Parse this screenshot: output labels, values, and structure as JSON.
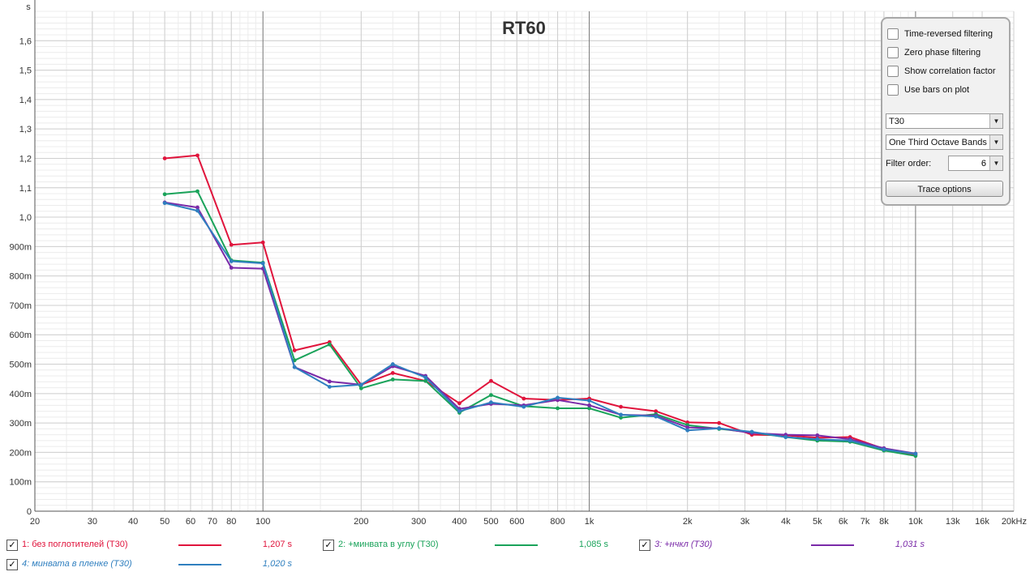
{
  "chart_data": {
    "type": "line",
    "title": "RT60",
    "ylabel": "s",
    "xlabel": "",
    "x_scale": "log",
    "xlim": [
      20,
      20000
    ],
    "ylim": [
      0,
      1.7
    ],
    "x_ticks": [
      {
        "v": 20,
        "label": "20"
      },
      {
        "v": 30,
        "label": "30"
      },
      {
        "v": 40,
        "label": "40"
      },
      {
        "v": 50,
        "label": "50"
      },
      {
        "v": 60,
        "label": "60"
      },
      {
        "v": 70,
        "label": "70"
      },
      {
        "v": 80,
        "label": "80"
      },
      {
        "v": 100,
        "label": "100"
      },
      {
        "v": 200,
        "label": "200"
      },
      {
        "v": 300,
        "label": "300"
      },
      {
        "v": 400,
        "label": "400"
      },
      {
        "v": 500,
        "label": "500"
      },
      {
        "v": 600,
        "label": "600"
      },
      {
        "v": 800,
        "label": "800"
      },
      {
        "v": 1000,
        "label": "1k"
      },
      {
        "v": 2000,
        "label": "2k"
      },
      {
        "v": 3000,
        "label": "3k"
      },
      {
        "v": 4000,
        "label": "4k"
      },
      {
        "v": 5000,
        "label": "5k"
      },
      {
        "v": 6000,
        "label": "6k"
      },
      {
        "v": 7000,
        "label": "7k"
      },
      {
        "v": 8000,
        "label": "8k"
      },
      {
        "v": 10000,
        "label": "10k"
      },
      {
        "v": 13000,
        "label": "13k"
      },
      {
        "v": 16000,
        "label": "16k"
      },
      {
        "v": 20000,
        "label": "20kHz"
      }
    ],
    "y_ticks": [
      {
        "v": 0,
        "label": "0"
      },
      {
        "v": 0.1,
        "label": "100m"
      },
      {
        "v": 0.2,
        "label": "200m"
      },
      {
        "v": 0.3,
        "label": "300m"
      },
      {
        "v": 0.4,
        "label": "400m"
      },
      {
        "v": 0.5,
        "label": "500m"
      },
      {
        "v": 0.6,
        "label": "600m"
      },
      {
        "v": 0.7,
        "label": "700m"
      },
      {
        "v": 0.8,
        "label": "800m"
      },
      {
        "v": 0.9,
        "label": "900m"
      },
      {
        "v": 1.0,
        "label": "1,0"
      },
      {
        "v": 1.1,
        "label": "1,1"
      },
      {
        "v": 1.2,
        "label": "1,2"
      },
      {
        "v": 1.3,
        "label": "1,3"
      },
      {
        "v": 1.4,
        "label": "1,4"
      },
      {
        "v": 1.5,
        "label": "1,5"
      },
      {
        "v": 1.6,
        "label": "1,6"
      }
    ],
    "x": [
      50,
      63,
      80,
      100,
      125,
      160,
      200,
      250,
      315,
      400,
      500,
      630,
      800,
      1000,
      1250,
      1600,
      2000,
      2500,
      3150,
      4000,
      5000,
      6300,
      8000,
      10000
    ],
    "series": [
      {
        "name": "1: без поглотителей (T30)",
        "color": "#e0143c",
        "values": [
          1.2,
          1.21,
          0.906,
          0.914,
          0.547,
          0.575,
          0.43,
          0.47,
          0.443,
          0.367,
          0.443,
          0.383,
          0.378,
          0.383,
          0.355,
          0.34,
          0.302,
          0.3,
          0.26,
          0.258,
          0.25,
          0.252,
          0.212,
          0.192
        ]
      },
      {
        "name": "2: +минвата в углу (T30)",
        "color": "#1aa35a",
        "values": [
          1.078,
          1.088,
          0.853,
          0.845,
          0.513,
          0.567,
          0.418,
          0.448,
          0.443,
          0.335,
          0.395,
          0.357,
          0.35,
          0.35,
          0.318,
          0.33,
          0.293,
          0.28,
          0.268,
          0.252,
          0.24,
          0.236,
          0.206,
          0.188
        ]
      },
      {
        "name": "3: +нчкл (T30)",
        "color": "#7a2aa8",
        "values": [
          1.05,
          1.033,
          0.828,
          0.825,
          0.49,
          0.441,
          0.43,
          0.493,
          0.46,
          0.348,
          0.365,
          0.36,
          0.378,
          0.36,
          0.328,
          0.325,
          0.285,
          0.282,
          0.266,
          0.26,
          0.258,
          0.245,
          0.214,
          0.196
        ]
      },
      {
        "name": "4: минвата в пленке (T30)",
        "color": "#2f7fbf",
        "values": [
          1.048,
          1.022,
          0.85,
          0.843,
          0.49,
          0.423,
          0.43,
          0.5,
          0.455,
          0.34,
          0.37,
          0.355,
          0.386,
          0.376,
          0.328,
          0.322,
          0.275,
          0.282,
          0.27,
          0.252,
          0.245,
          0.24,
          0.21,
          0.195
        ]
      }
    ],
    "grid": true
  },
  "legend": [
    {
      "label": "1: без поглотителей (T30)",
      "value": "1,207 s",
      "color": "#e0143c",
      "italic": false,
      "checked": true
    },
    {
      "label": "2: +минвата в углу (T30)",
      "value": "1,085 s",
      "color": "#1aa35a",
      "italic": false,
      "checked": true
    },
    {
      "label": "3: +нчкл (T30)",
      "value": "1,031 s",
      "color": "#7a2aa8",
      "italic": true,
      "checked": true
    },
    {
      "label": "4: минвата в пленке (T30)",
      "value": "1,020 s",
      "color": "#2f7fbf",
      "italic": true,
      "checked": true
    }
  ],
  "panel": {
    "options": [
      {
        "label": "Time-reversed filtering",
        "checked": false
      },
      {
        "label": "Zero phase filtering",
        "checked": false
      },
      {
        "label": "Show correlation factor",
        "checked": false
      },
      {
        "label": "Use bars on plot",
        "checked": false
      }
    ],
    "metric_select": "T30",
    "bands_select": "One Third Octave Bands",
    "filter_order_label": "Filter order:",
    "filter_order_value": "6",
    "trace_button": "Trace options"
  },
  "check_glyph": "✓"
}
